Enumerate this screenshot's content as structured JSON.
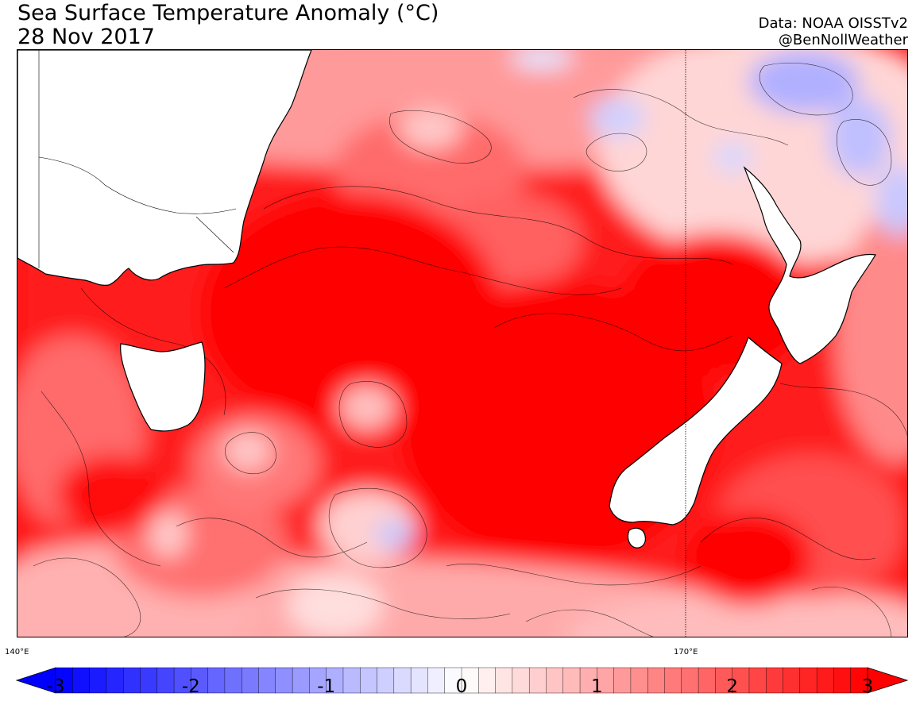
{
  "header": {
    "title_line1": "Sea Surface Temperature Anomaly (°C)",
    "title_line2": "28 Nov 2017",
    "source": "Data: NOAA OISSTv2",
    "handle": "@BenNollWeather"
  },
  "map": {
    "longitude_labels": [
      "140°E",
      "170°E"
    ],
    "landmasses": [
      "Australia",
      "Tasmania",
      "New Zealand North Island",
      "New Zealand South Island",
      "Stewart Island"
    ],
    "palette": {
      "strong_warm": "#ff0000",
      "warm": "#ff3333",
      "mild_warm": "#ff7777",
      "weak_warm": "#ffbbbb",
      "neutral": "#ffffff",
      "weak_cool": "#ddddff",
      "cool": "#aaaaff",
      "land": "#ffffff"
    }
  },
  "colorbar": {
    "min": -3,
    "max": 3,
    "step": 0.125,
    "ticks": [
      "-3",
      "-2",
      "-1",
      "0",
      "1",
      "2",
      "3"
    ],
    "low_color": "#0000ff",
    "mid_color": "#ffffff",
    "high_color": "#ff0000"
  }
}
